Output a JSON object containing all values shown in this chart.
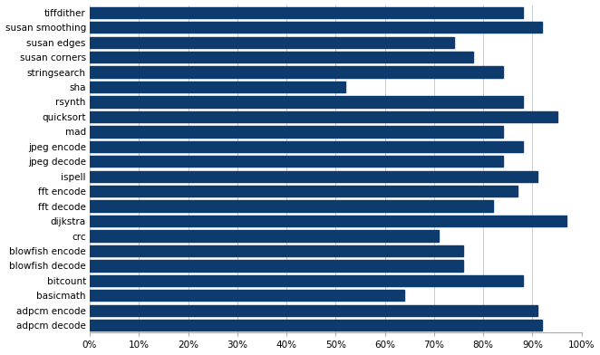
{
  "categories": [
    "tiffdither",
    "susan smoothing",
    "susan edges",
    "susan corners",
    "stringsearch",
    "sha",
    "rsynth",
    "quicksort",
    "mad",
    "jpeg encode",
    "jpeg decode",
    "ispell",
    "fft encode",
    "fft decode",
    "dijkstra",
    "crc",
    "blowfish encode",
    "blowfish decode",
    "bitcount",
    "basicmath",
    "adpcm encode",
    "adpcm decode"
  ],
  "values": [
    0.88,
    0.92,
    0.74,
    0.78,
    0.84,
    0.52,
    0.88,
    0.95,
    0.84,
    0.88,
    0.84,
    0.91,
    0.87,
    0.82,
    0.97,
    0.71,
    0.76,
    0.76,
    0.88,
    0.64,
    0.91,
    0.92
  ],
  "bar_color": "#0d3b6e",
  "background_color": "#ffffff",
  "grid_color": "#cccccc",
  "xlim": [
    0,
    1.0
  ],
  "xticks": [
    0,
    0.1,
    0.2,
    0.3,
    0.4,
    0.5,
    0.6,
    0.7,
    0.8,
    0.9,
    1.0
  ],
  "tick_fontsize": 7.5,
  "label_fontsize": 7.5,
  "bar_height": 0.75
}
